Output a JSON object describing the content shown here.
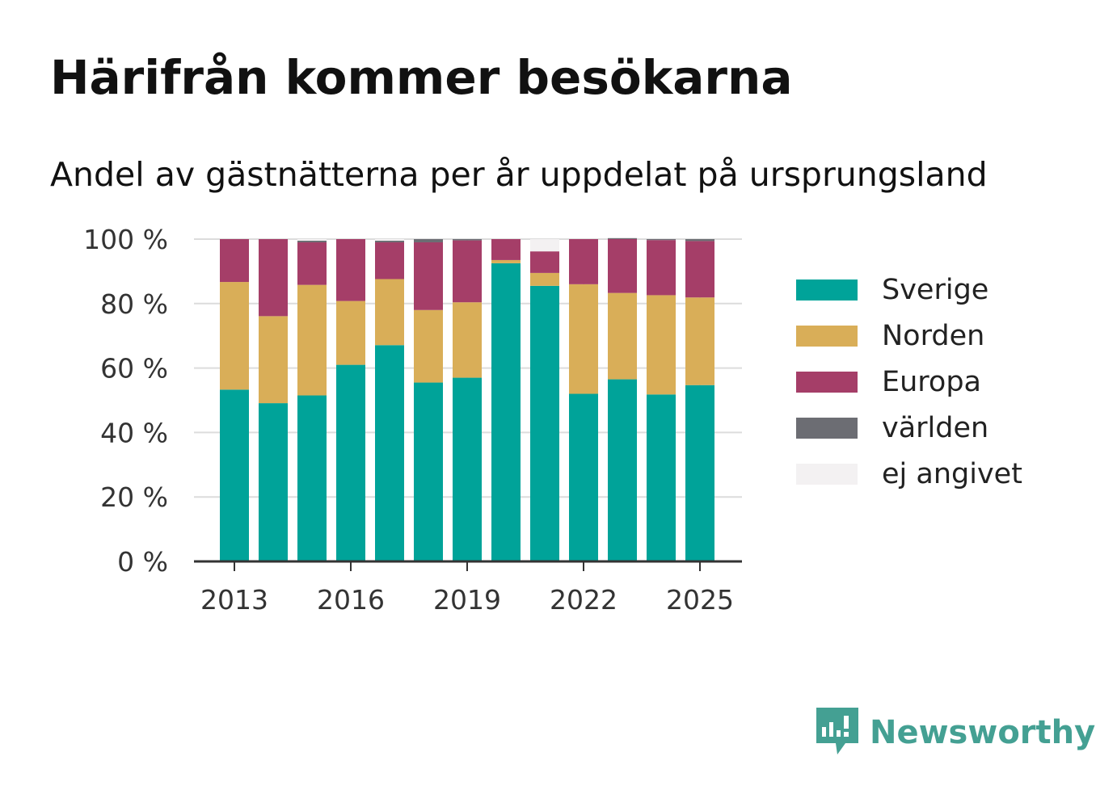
{
  "title": "Härifrån kommer besökarna",
  "subtitle": "Andel av gästnätterna per år uppdelat på ursprungsland",
  "brand": {
    "name": "Newsworthy",
    "color": "#44a093"
  },
  "chart_data": {
    "type": "bar",
    "stacked": true,
    "x": [
      2013,
      2014,
      2015,
      2016,
      2017,
      2018,
      2019,
      2020,
      2021,
      2022,
      2023,
      2024,
      2025
    ],
    "x_ticks": [
      "2013",
      "2016",
      "2019",
      "2022",
      "2025"
    ],
    "y_ticks": [
      "0 %",
      "20 %",
      "40 %",
      "60 %",
      "80 %",
      "100 %"
    ],
    "ylim": [
      0,
      100
    ],
    "grid": true,
    "legend_position": "right",
    "series": [
      {
        "name": "Sverige",
        "color": "#00a399",
        "values": [
          53.3,
          49.1,
          51.5,
          61.0,
          67.1,
          55.5,
          57.0,
          92.5,
          85.5,
          52.0,
          56.5,
          51.8,
          54.7
        ]
      },
      {
        "name": "Norden",
        "color": "#d9ae58",
        "values": [
          33.4,
          27.0,
          34.3,
          19.8,
          20.5,
          22.5,
          23.4,
          1.0,
          4.0,
          34.0,
          26.8,
          30.8,
          27.2
        ]
      },
      {
        "name": "Europa",
        "color": "#a53e68",
        "values": [
          13.3,
          23.9,
          13.2,
          19.2,
          11.4,
          21.0,
          19.2,
          6.5,
          6.7,
          14.0,
          16.7,
          17.1,
          17.5
        ]
      },
      {
        "name": "världen",
        "color": "#6c6d73",
        "values": [
          0.0,
          0.0,
          0.5,
          0.0,
          0.5,
          1.0,
          0.4,
          0.0,
          0.0,
          0.0,
          0.3,
          0.3,
          0.6
        ]
      },
      {
        "name": "ej angivet",
        "color": "#f3f1f2",
        "values": [
          0.0,
          0.0,
          0.5,
          0.0,
          0.5,
          0.0,
          0.0,
          0.0,
          3.8,
          0.0,
          0.0,
          0.0,
          0.0
        ]
      }
    ]
  }
}
